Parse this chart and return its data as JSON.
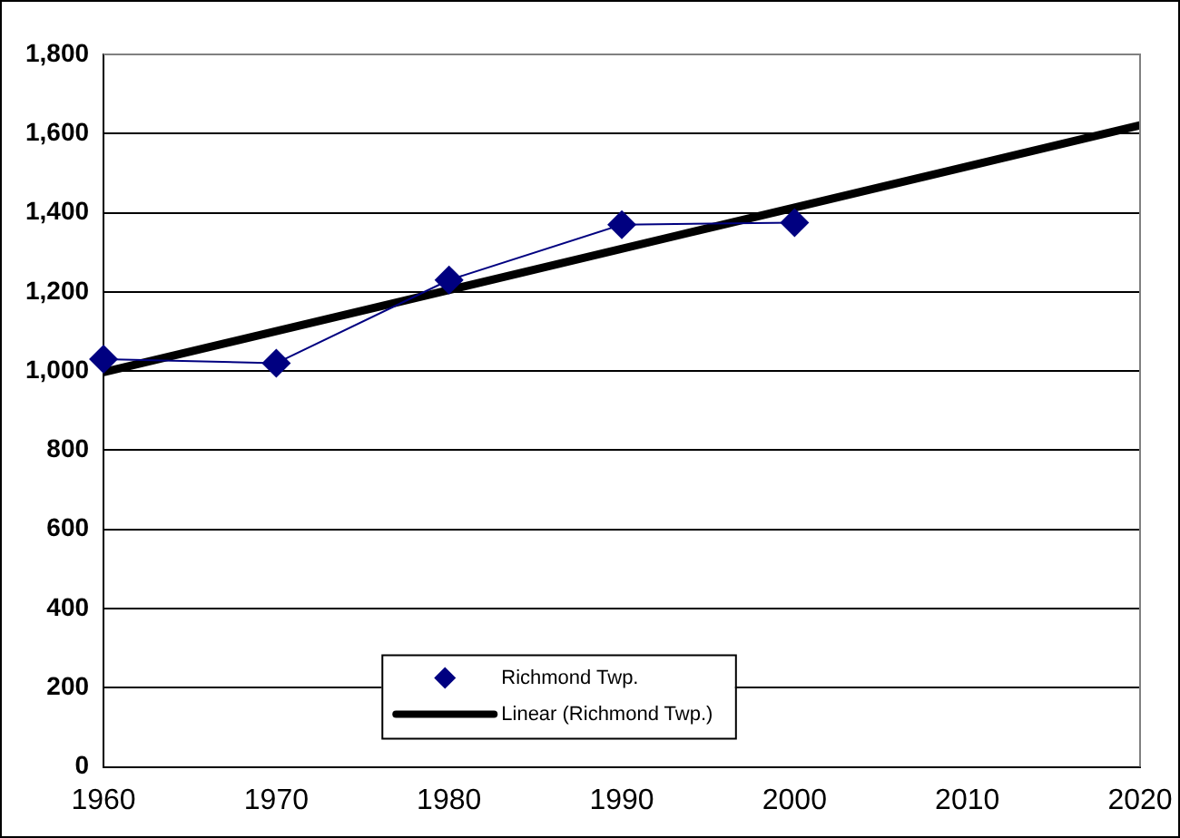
{
  "chart_data": {
    "type": "line",
    "x": [
      1960,
      1970,
      1980,
      1990,
      2000
    ],
    "series": [
      {
        "name": "Richmond Twp.",
        "color": "#000080",
        "values": [
          1030,
          1020,
          1230,
          1370,
          1375
        ]
      },
      {
        "name": "Linear (Richmond Twp.)",
        "type": "line",
        "color": "#000000",
        "x": [
          1960,
          2020
        ],
        "values": [
          997,
          1621
        ],
        "marker": "none"
      }
    ],
    "xlim": [
      1960,
      2020
    ],
    "xticks": [
      1960,
      1970,
      1980,
      1990,
      2000,
      2010,
      2020
    ],
    "ylim": [
      0,
      1800
    ],
    "yticks": [
      {
        "value": 0,
        "label": "0"
      },
      {
        "value": 200,
        "label": "200"
      },
      {
        "value": 400,
        "label": "400"
      },
      {
        "value": 600,
        "label": "600"
      },
      {
        "value": 800,
        "label": "800"
      },
      {
        "value": 1000,
        "label": "1,000"
      },
      {
        "value": 1200,
        "label": "1,200"
      },
      {
        "value": 1400,
        "label": "1,400"
      },
      {
        "value": 1600,
        "label": "1,600"
      },
      {
        "value": 1800,
        "label": "1,800"
      }
    ],
    "grid": "y",
    "legend": "bottom",
    "marker": "diamond"
  }
}
